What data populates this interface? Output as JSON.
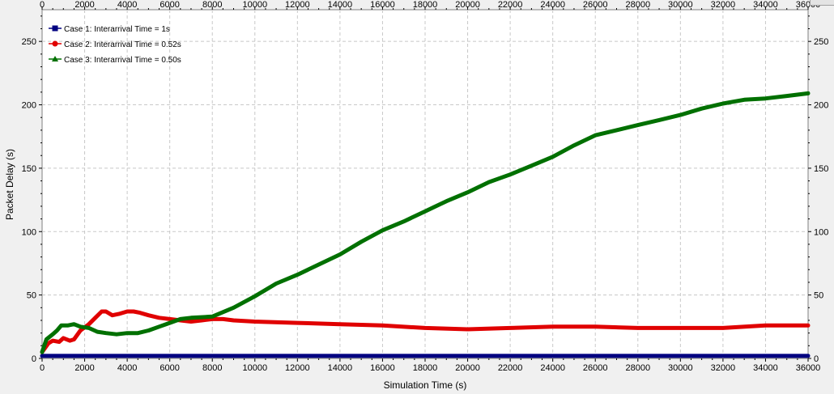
{
  "chart_data": {
    "type": "line",
    "xlabel": "Simulation Time (s)",
    "ylabel": "Packet Delay (s)",
    "xlim": [
      0,
      36000
    ],
    "ylim": [
      0,
      275
    ],
    "xticks": [
      0,
      2000,
      4000,
      6000,
      8000,
      10000,
      12000,
      14000,
      16000,
      18000,
      20000,
      22000,
      24000,
      26000,
      28000,
      30000,
      32000,
      34000,
      36000
    ],
    "yticks": [
      0,
      50,
      100,
      150,
      200,
      250
    ],
    "grid": true,
    "legend_position": "top-left",
    "series": [
      {
        "name": "Case 1:  Interarrival Time = 1s",
        "color": "#000080",
        "marker": "square",
        "x": [
          0,
          2000,
          4000,
          6000,
          8000,
          10000,
          12000,
          14000,
          16000,
          18000,
          20000,
          22000,
          24000,
          26000,
          28000,
          30000,
          32000,
          34000,
          36000
        ],
        "y": [
          2,
          2,
          2,
          2,
          2,
          2,
          2,
          2,
          2,
          2,
          2,
          2,
          2,
          2,
          2,
          2,
          2,
          2,
          2
        ]
      },
      {
        "name": "Case 2:  Interarrival Time = 0.52s",
        "color": "#e00000",
        "marker": "circle",
        "x": [
          0,
          300,
          500,
          800,
          1000,
          1300,
          1500,
          1800,
          2200,
          2500,
          2800,
          3000,
          3300,
          3600,
          4000,
          4300,
          4600,
          5000,
          5500,
          6000,
          6500,
          7000,
          7500,
          8000,
          8500,
          9000,
          10000,
          12000,
          14000,
          16000,
          18000,
          20000,
          22000,
          24000,
          26000,
          28000,
          30000,
          32000,
          34000,
          36000
        ],
        "y": [
          5,
          12,
          14,
          13,
          16,
          14,
          15,
          22,
          27,
          32,
          37,
          37,
          34,
          35,
          37,
          37,
          36,
          34,
          32,
          31,
          30,
          29,
          30,
          31,
          31,
          30,
          29,
          28,
          27,
          26,
          24,
          23,
          24,
          25,
          25,
          24,
          24,
          24,
          26,
          26
        ]
      },
      {
        "name": "Case 3:  Interarrival Time = 0.50s",
        "color": "#007000",
        "marker": "triangle",
        "x": [
          0,
          200,
          500,
          700,
          900,
          1200,
          1500,
          1800,
          2200,
          2600,
          3000,
          3500,
          4000,
          4500,
          5000,
          5500,
          6000,
          6500,
          7000,
          8000,
          9000,
          10000,
          11000,
          12000,
          13000,
          14000,
          15000,
          16000,
          17000,
          18000,
          19000,
          20000,
          21000,
          22000,
          23000,
          24000,
          25000,
          26000,
          27000,
          28000,
          29000,
          30000,
          31000,
          32000,
          33000,
          34000,
          35000,
          36000
        ],
        "y": [
          5,
          15,
          19,
          22,
          26,
          26,
          27,
          25,
          24,
          21,
          20,
          19,
          20,
          20,
          22,
          25,
          28,
          31,
          32,
          33,
          40,
          49,
          59,
          66,
          74,
          82,
          92,
          101,
          108,
          116,
          124,
          131,
          139,
          145,
          152,
          159,
          168,
          176,
          180,
          184,
          188,
          192,
          197,
          201,
          204,
          205,
          207,
          209
        ]
      }
    ]
  }
}
